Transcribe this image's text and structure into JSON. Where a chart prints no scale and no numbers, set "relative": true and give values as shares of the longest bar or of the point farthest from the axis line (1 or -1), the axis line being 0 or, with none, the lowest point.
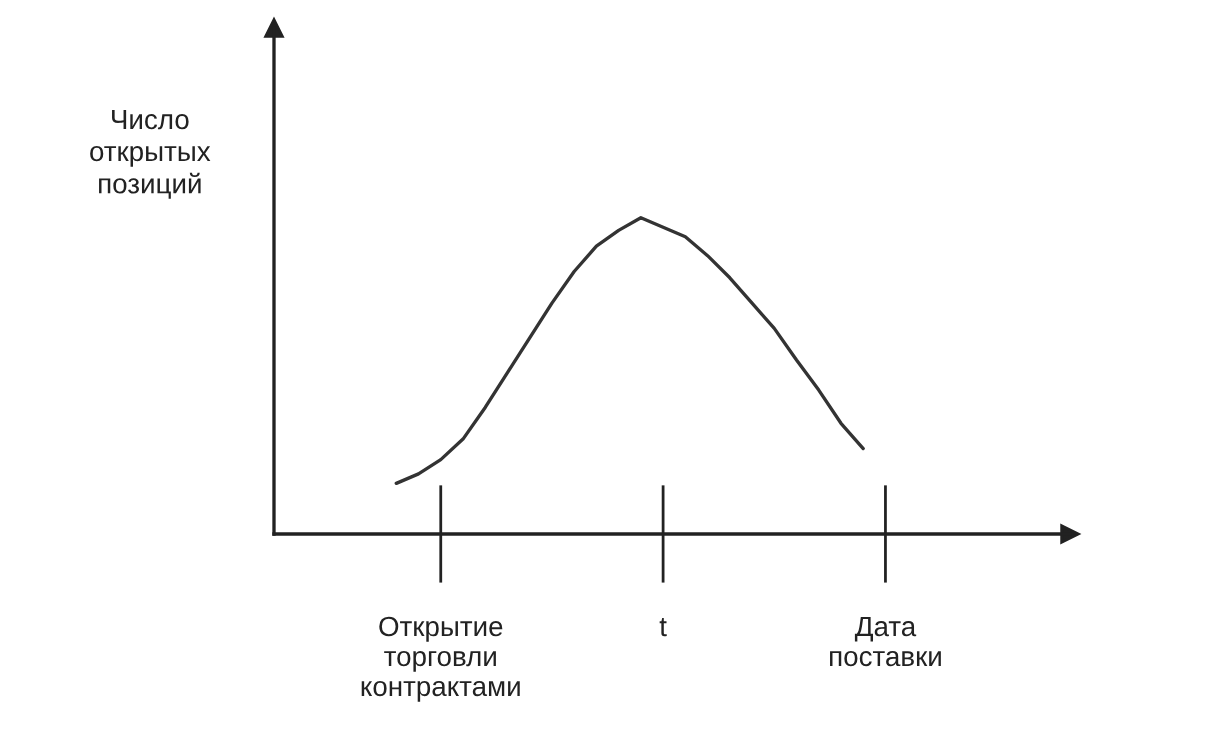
{
  "chart_data": {
    "type": "line",
    "relative": true,
    "annotations": [
      "Число\nоткрытых\nпозиций"
    ],
    "categories": [
      null,
      null,
      "Открытие\nторговли\nконтрактами",
      null,
      null,
      null,
      null,
      null,
      null,
      null,
      null,
      null,
      "t",
      null,
      null,
      null,
      null,
      null,
      null,
      null,
      null,
      null,
      "Дата\nпоставки"
    ],
    "series": [
      {
        "color": "#333333",
        "values": [
          0.16,
          0.19,
          0.235,
          0.3,
          0.4,
          0.51,
          0.62,
          0.73,
          0.83,
          0.91,
          0.96,
          1.0,
          0.97,
          0.94,
          0.88,
          0.81,
          0.73,
          0.65,
          0.55,
          0.455,
          0.35,
          0.27,
          null
        ]
      }
    ],
    "grid": false,
    "marker": "none",
    "line_style": "solid"
  }
}
